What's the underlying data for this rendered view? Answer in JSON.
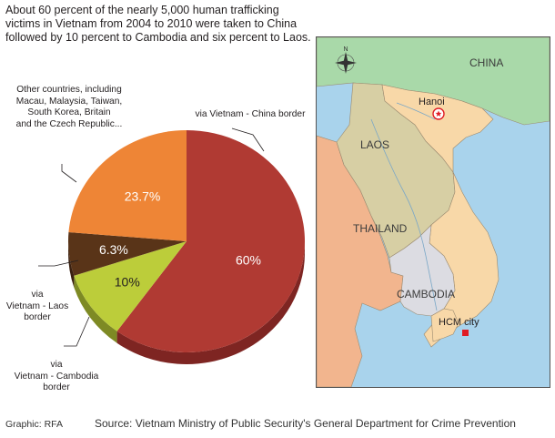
{
  "headline": {
    "line1": "About 60 percent of the nearly 5,000 human trafficking",
    "line2": "victims in Vietnam from 2004 to 2010 were taken to China",
    "line3": "followed by 10 percent to Cambodia and six percent to Laos."
  },
  "chart_data": {
    "type": "pie",
    "title": "",
    "slices": [
      {
        "label": "via Vietnam - China border",
        "value": 60,
        "display": "60%",
        "color": "#b03a33",
        "side": "#7e2522"
      },
      {
        "label": "via Vietnam - Cambodia border",
        "value": 10,
        "display": "10%",
        "color": "#bccd3a",
        "side": "#7e8a24"
      },
      {
        "label": "via Vietnam - Laos border",
        "value": 6.3,
        "display": "6.3%",
        "color": "#593418",
        "side": "#3a2010"
      },
      {
        "label": "Other countries, including Macau, Malaysia, Taiwan, South Korea, Britain and the Czech Republic...",
        "value": 23.7,
        "display": "23.7%",
        "color": "#ee8536",
        "side": "#b05e22"
      }
    ]
  },
  "annotations": {
    "china": "via  Vietnam - China border",
    "other": [
      "Other countries, including",
      "Macau, Malaysia, Taiwan,",
      "South Korea, Britain",
      "and the Czech Republic..."
    ],
    "laos": [
      "via",
      "Vietnam - Laos",
      "border"
    ],
    "cambodia": [
      "via",
      "Vietnam - Cambodia",
      "border"
    ]
  },
  "map": {
    "labels": {
      "china": "CHINA",
      "hanoi": "Hanoi",
      "laos": "LAOS",
      "thailand": "THAILAND",
      "cambodia": "CAMBODIA",
      "hcm": "HCM city",
      "compass": "N"
    },
    "colors": {
      "sea": "#a9d3ec",
      "china": "#a9d9a9",
      "vietnam": "#f8d8a8",
      "laos": "#d7cfa4",
      "thailand": "#f2b58e",
      "cambodia": "#dcdce2",
      "marker": "#e01b24"
    }
  },
  "footer": {
    "credit": "Graphic: RFA",
    "source": "Source: Vietnam Ministry of Public Security's General Department for Crime Prevention"
  }
}
